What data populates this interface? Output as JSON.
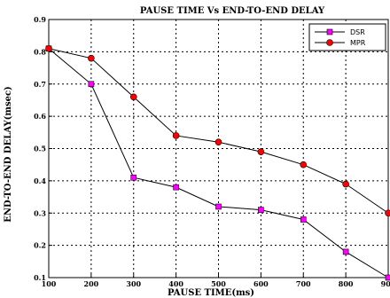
{
  "chart_data": {
    "type": "line",
    "title": "PAUSE TIME Vs END-TO-END DELAY",
    "xlabel": "PAUSE TIME(ms)",
    "ylabel": "END-TO-END DELAY(msec)",
    "x": [
      100,
      200,
      300,
      400,
      500,
      600,
      700,
      800,
      900
    ],
    "xticks": [
      "100",
      "200",
      "300",
      "400",
      "500",
      "600",
      "700",
      "800",
      "900"
    ],
    "yticks": [
      "0.1",
      "0.2",
      "0.3",
      "0.4",
      "0.5",
      "0.6",
      "0.7",
      "0.8",
      "0.9"
    ],
    "xlim": [
      100,
      900
    ],
    "ylim": [
      0.1,
      0.9
    ],
    "grid": true,
    "legend_position": "top-right",
    "series": [
      {
        "name": "DSR",
        "color": "#ff00ff",
        "marker": "square",
        "values": [
          0.81,
          0.7,
          0.41,
          0.38,
          0.32,
          0.31,
          0.28,
          0.18,
          0.1
        ]
      },
      {
        "name": "MPR",
        "color": "#ff0000",
        "marker": "circle",
        "values": [
          0.81,
          0.78,
          0.66,
          0.54,
          0.52,
          0.49,
          0.45,
          0.39,
          0.3
        ]
      }
    ]
  }
}
